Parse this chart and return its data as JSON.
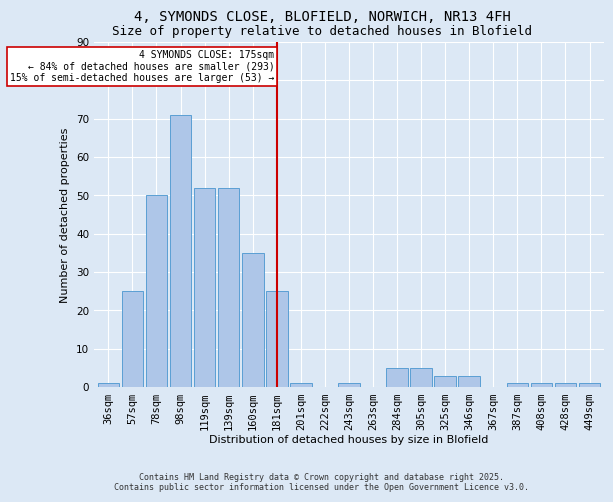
{
  "title_line1": "4, SYMONDS CLOSE, BLOFIELD, NORWICH, NR13 4FH",
  "title_line2": "Size of property relative to detached houses in Blofield",
  "xlabel": "Distribution of detached houses by size in Blofield",
  "ylabel": "Number of detached properties",
  "bar_labels": [
    "36sqm",
    "57sqm",
    "78sqm",
    "98sqm",
    "119sqm",
    "139sqm",
    "160sqm",
    "181sqm",
    "201sqm",
    "222sqm",
    "243sqm",
    "263sqm",
    "284sqm",
    "305sqm",
    "325sqm",
    "346sqm",
    "367sqm",
    "387sqm",
    "408sqm",
    "428sqm",
    "449sqm"
  ],
  "bar_values": [
    1,
    25,
    50,
    71,
    52,
    52,
    35,
    25,
    1,
    0,
    1,
    0,
    5,
    5,
    3,
    3,
    0,
    1,
    1,
    1,
    1
  ],
  "bar_color": "#aec6e8",
  "bar_edge_color": "#5a9fd4",
  "vline_x": 7,
  "vline_color": "#cc0000",
  "property_label": "4 SYMONDS CLOSE: 175sqm",
  "annotation_line2": "← 84% of detached houses are smaller (293)",
  "annotation_line3": "15% of semi-detached houses are larger (53) →",
  "annotation_box_color": "#ffffff",
  "annotation_box_edge": "#cc0000",
  "ylim": [
    0,
    90
  ],
  "yticks": [
    0,
    10,
    20,
    30,
    40,
    50,
    60,
    70,
    80,
    90
  ],
  "background_color": "#dce8f5",
  "footer_line1": "Contains HM Land Registry data © Crown copyright and database right 2025.",
  "footer_line2": "Contains public sector information licensed under the Open Government Licence v3.0.",
  "title_fontsize": 10,
  "subtitle_fontsize": 9,
  "axis_fontsize": 8,
  "tick_fontsize": 7.5,
  "footer_fontsize": 6
}
